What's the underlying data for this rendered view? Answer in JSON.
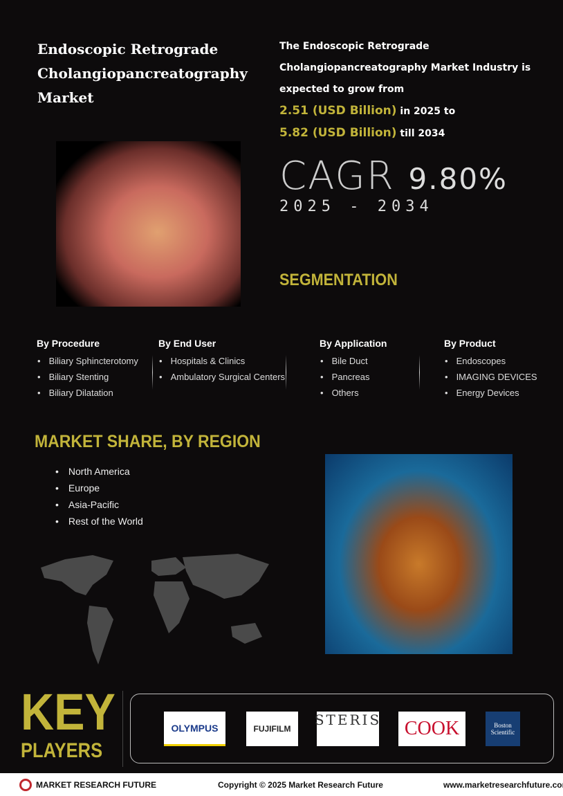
{
  "header": {
    "title": "Endoscopic Retrograde Cholangiopancreatography Market",
    "intro_line1": "The Endoscopic Retrograde Cholangiopancreatography Market Industry is expected to grow from",
    "value_2025": "2.51 (USD Billion)",
    "text_2025": " in 2025 to",
    "value_2034": "5.82 (USD Billion)",
    "text_2034": " till 2034"
  },
  "cagr": {
    "label": "CAGR ",
    "value": "9.80%",
    "years": "2025 - 2034"
  },
  "segmentation": {
    "title": "SEGMENTATION",
    "columns": [
      {
        "heading": "By Procedure",
        "items": [
          "Biliary Sphincterotomy",
          "Biliary Stenting",
          "Biliary Dilatation"
        ]
      },
      {
        "heading": "By End User",
        "items": [
          "Hospitals & Clinics",
          "Ambulatory Surgical Centers"
        ]
      },
      {
        "heading": "By Application",
        "items": [
          "Bile Duct",
          "Pancreas",
          "Others"
        ]
      },
      {
        "heading": "By Product",
        "items": [
          "Endoscopes",
          "IMAGING DEVICES",
          "Energy Devices"
        ]
      }
    ]
  },
  "region": {
    "title": "MARKET SHARE, BY REGION",
    "items": [
      "North America",
      "Europe",
      "Asia-Pacific",
      "Rest of the World"
    ]
  },
  "key_players": {
    "title_1": "KEY",
    "title_2": "PLAYERS",
    "logos": [
      "OLYMPUS",
      "FUJIFILM",
      "STERIS",
      "COOK",
      "Boston Scientific"
    ]
  },
  "footer": {
    "brand": "MARKET RESEARCH FUTURE",
    "copyright": "Copyright © 2025 Market Research Future",
    "url": "www.marketresearchfuture.com"
  },
  "colors": {
    "accent": "#c2b43a",
    "background": "#0d0b0c"
  }
}
